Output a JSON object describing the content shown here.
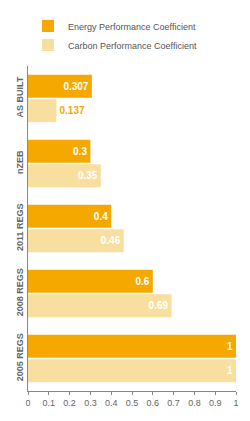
{
  "chart_data": {
    "type": "bar",
    "orientation": "horizontal",
    "categories": [
      "AS BUILT",
      "nZEB",
      "2011 REGS",
      "2008 REGS",
      "2005 REGS"
    ],
    "series": [
      {
        "name": "Energy Performance Coefficient",
        "color": "#F5A800",
        "values": [
          0.307,
          0.3,
          0.4,
          0.6,
          1
        ]
      },
      {
        "name": "Carbon Performance Coefficient",
        "color": "#F8DFA0",
        "values": [
          0.137,
          0.35,
          0.46,
          0.69,
          1
        ]
      }
    ],
    "xlim": [
      0,
      1.0
    ],
    "xticks": [
      0,
      0.1,
      0.2,
      0.3,
      0.4,
      0.5,
      0.6,
      0.7,
      0.8,
      0.9,
      1
    ],
    "data_labels": true,
    "grid": false,
    "legend": "upper left"
  }
}
